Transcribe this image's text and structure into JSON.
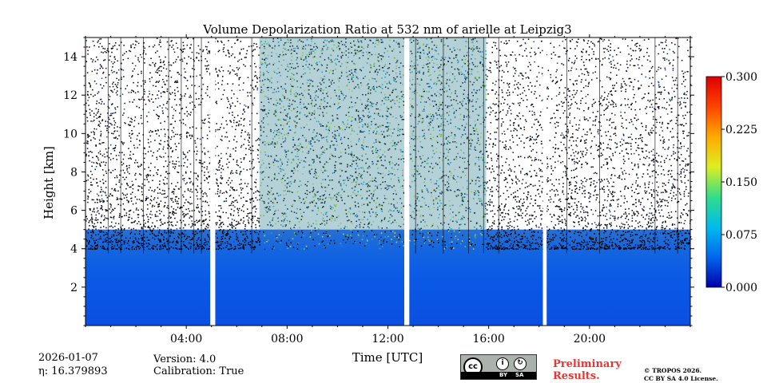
{
  "chart_data": {
    "type": "heatmap",
    "title": "Volume Depolarization Ratio at 532 nm of arielle at Leipzig3",
    "xlabel": "Time [UTC]",
    "ylabel": "Height [km]",
    "xlim_hours": [
      0,
      24
    ],
    "ylim_km": [
      0,
      15
    ],
    "x_ticks": [
      {
        "hour": 4,
        "label": "04:00"
      },
      {
        "hour": 8,
        "label": "08:00"
      },
      {
        "hour": 12,
        "label": "12:00"
      },
      {
        "hour": 16,
        "label": "16:00"
      },
      {
        "hour": 20,
        "label": "20:00"
      }
    ],
    "y_ticks": [
      {
        "value": 2,
        "label": "2"
      },
      {
        "value": 4,
        "label": "4"
      },
      {
        "value": 6,
        "label": "6"
      },
      {
        "value": 8,
        "label": "8"
      },
      {
        "value": 10,
        "label": "10"
      },
      {
        "value": 12,
        "label": "12"
      },
      {
        "value": 14,
        "label": "14"
      }
    ],
    "colorbar": {
      "range": [
        0.0,
        0.3
      ],
      "ticks": [
        "0.300",
        "0.225",
        "0.150",
        "0.075",
        "0.000"
      ],
      "tick_values": [
        0.3,
        0.225,
        0.15,
        0.075,
        0.0
      ],
      "colors": [
        "#0000aa",
        "#0066ee",
        "#00bbee",
        "#33dd88",
        "#ddee22",
        "#ffaa00",
        "#ff4400",
        "#dd0000"
      ]
    },
    "data_gaps_hours": [
      [
        4.95,
        5.15
      ],
      [
        12.65,
        12.85
      ],
      [
        18.15,
        18.3
      ]
    ],
    "dense_aerosol_interval_hours": [
      6.9,
      15.9
    ],
    "boundary_layer_top_km": 5
  },
  "footer": {
    "date": "2026-01-07",
    "eta_label": "η: 16.379893",
    "version": "Version: 4.0",
    "calibration": "Calibration: True",
    "preliminary": "Preliminary",
    "results": "Results.",
    "copyright": "© TROPOS 2026.",
    "license": "CC BY SA 4.0 License.",
    "cc_label": "cc",
    "cc_by": "BY",
    "cc_sa": "SA"
  }
}
